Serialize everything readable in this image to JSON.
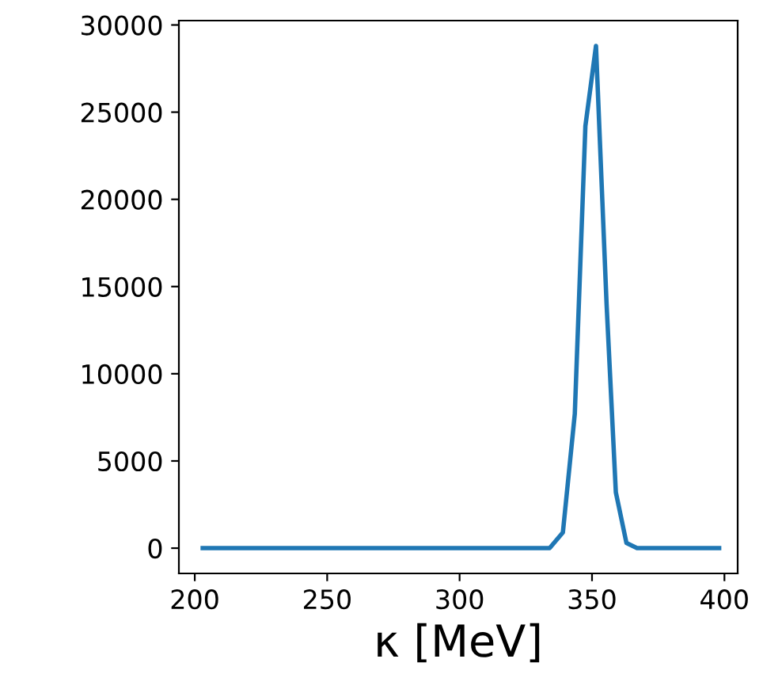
{
  "chart_data": {
    "type": "line",
    "xlabel": "κ [MeV]",
    "x": [
      203,
      330,
      334,
      339,
      343.5,
      347.5,
      351.5,
      355.5,
      359,
      363,
      367,
      398
    ],
    "series": [
      {
        "color": "#1f77b4",
        "values": [
          0,
          0,
          0,
          900,
          7700,
          24200,
          28800,
          14000,
          3200,
          300,
          0,
          0
        ]
      }
    ],
    "xlim": [
      194,
      405
    ],
    "ylim": [
      -1450,
      30250
    ],
    "xticks": [
      200,
      250,
      300,
      350,
      400
    ],
    "yticks": [
      0,
      5000,
      10000,
      15000,
      20000,
      25000,
      30000
    ],
    "grid": false,
    "marker": "none",
    "line_style": "solid"
  }
}
